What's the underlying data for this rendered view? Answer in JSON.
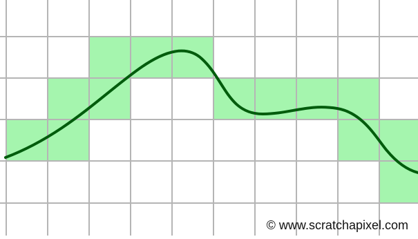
{
  "colors": {
    "background": "#ffffff",
    "grid_line": "#b5b5b5",
    "cell_fill": "#a5f5ae",
    "cell_stroke": "#86dc92",
    "curve": "#005c0c"
  },
  "watermark": {
    "text": "© www.scratchapixel.com"
  }
}
